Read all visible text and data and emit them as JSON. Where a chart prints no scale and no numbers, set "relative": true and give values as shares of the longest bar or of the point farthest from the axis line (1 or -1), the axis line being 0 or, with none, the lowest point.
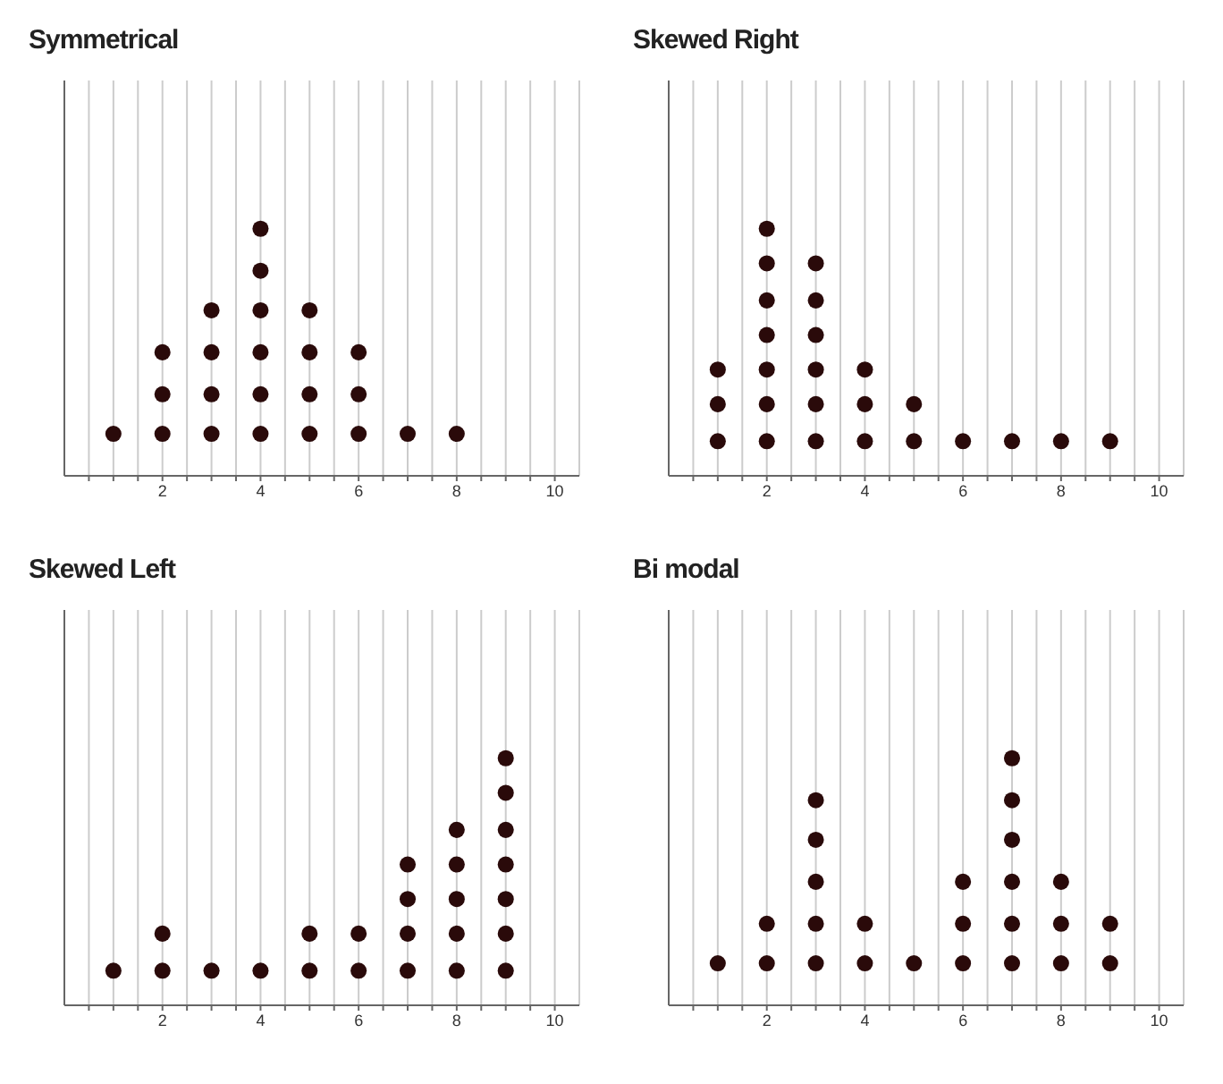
{
  "chart_data": [
    {
      "type": "scatter",
      "title": "Symmetrical",
      "color": "#2a0a0a",
      "marker": "circle",
      "grid": "x",
      "tick_labels": "x",
      "relative": true,
      "x": [
        1,
        2,
        2,
        2,
        3,
        3,
        3,
        3,
        4,
        4,
        4,
        4,
        4,
        4,
        5,
        5,
        5,
        5,
        6,
        6,
        6,
        7,
        8
      ],
      "values": [
        0.17,
        0.17,
        0.33,
        0.5,
        0.17,
        0.33,
        0.5,
        0.67,
        0.17,
        0.33,
        0.5,
        0.67,
        0.83,
        1,
        0.17,
        0.33,
        0.5,
        0.67,
        0.17,
        0.33,
        0.5,
        0.17,
        0.17
      ],
      "xlim": [
        0,
        10.5
      ],
      "xticks": [
        {
          "value": 0.5,
          "label": null
        },
        {
          "value": 1,
          "label": null
        },
        {
          "value": 1.5,
          "label": null
        },
        2,
        {
          "value": 2.5,
          "label": null
        },
        {
          "value": 3,
          "label": null
        },
        {
          "value": 3.5,
          "label": null
        },
        4,
        {
          "value": 4.5,
          "label": null
        },
        {
          "value": 5,
          "label": null
        },
        {
          "value": 5.5,
          "label": null
        },
        6,
        {
          "value": 6.5,
          "label": null
        },
        {
          "value": 7,
          "label": null
        },
        {
          "value": 7.5,
          "label": null
        },
        8,
        {
          "value": 8.5,
          "label": null
        },
        {
          "value": 9,
          "label": null
        },
        {
          "value": 9.5,
          "label": null
        },
        10
      ]
    },
    {
      "type": "scatter",
      "title": "Skewed Right",
      "color": "#2a0a0a",
      "marker": "circle",
      "grid": "x",
      "tick_labels": "x",
      "relative": true,
      "x": [
        1,
        1,
        1,
        2,
        2,
        2,
        2,
        2,
        2,
        2,
        3,
        3,
        3,
        3,
        3,
        3,
        4,
        4,
        4,
        5,
        5,
        6,
        7,
        8,
        9
      ],
      "values": [
        0.14,
        0.29,
        0.43,
        0.14,
        0.29,
        0.43,
        0.57,
        0.71,
        0.86,
        1,
        0.14,
        0.29,
        0.43,
        0.57,
        0.71,
        0.86,
        0.14,
        0.29,
        0.43,
        0.14,
        0.29,
        0.14,
        0.14,
        0.14,
        0.14
      ],
      "xlim": [
        0,
        10.5
      ],
      "xticks": [
        {
          "value": 0.5,
          "label": null
        },
        {
          "value": 1,
          "label": null
        },
        {
          "value": 1.5,
          "label": null
        },
        2,
        {
          "value": 2.5,
          "label": null
        },
        {
          "value": 3,
          "label": null
        },
        {
          "value": 3.5,
          "label": null
        },
        4,
        {
          "value": 4.5,
          "label": null
        },
        {
          "value": 5,
          "label": null
        },
        {
          "value": 5.5,
          "label": null
        },
        6,
        {
          "value": 6.5,
          "label": null
        },
        {
          "value": 7,
          "label": null
        },
        {
          "value": 7.5,
          "label": null
        },
        8,
        {
          "value": 8.5,
          "label": null
        },
        {
          "value": 9,
          "label": null
        },
        {
          "value": 9.5,
          "label": null
        },
        10
      ]
    },
    {
      "type": "scatter",
      "title": "Skewed Left",
      "color": "#2a0a0a",
      "marker": "circle",
      "grid": "x",
      "tick_labels": "x",
      "relative": true,
      "x": [
        1,
        2,
        2,
        3,
        4,
        5,
        5,
        6,
        6,
        7,
        7,
        7,
        7,
        8,
        8,
        8,
        8,
        8,
        9,
        9,
        9,
        9,
        9,
        9,
        9
      ],
      "values": [
        0.14,
        0.14,
        0.29,
        0.14,
        0.14,
        0.14,
        0.29,
        0.14,
        0.29,
        0.14,
        0.29,
        0.43,
        0.57,
        0.14,
        0.29,
        0.43,
        0.57,
        0.71,
        0.14,
        0.29,
        0.43,
        0.57,
        0.71,
        0.86,
        1
      ],
      "xlim": [
        0,
        10.5
      ],
      "xticks": [
        {
          "value": 0.5,
          "label": null
        },
        {
          "value": 1,
          "label": null
        },
        {
          "value": 1.5,
          "label": null
        },
        2,
        {
          "value": 2.5,
          "label": null
        },
        {
          "value": 3,
          "label": null
        },
        {
          "value": 3.5,
          "label": null
        },
        4,
        {
          "value": 4.5,
          "label": null
        },
        {
          "value": 5,
          "label": null
        },
        {
          "value": 5.5,
          "label": null
        },
        6,
        {
          "value": 6.5,
          "label": null
        },
        {
          "value": 7,
          "label": null
        },
        {
          "value": 7.5,
          "label": null
        },
        8,
        {
          "value": 8.5,
          "label": null
        },
        {
          "value": 9,
          "label": null
        },
        {
          "value": 9.5,
          "label": null
        },
        10
      ]
    },
    {
      "type": "scatter",
      "title": "Bi modal",
      "color": "#2a0a0a",
      "marker": "circle",
      "grid": "x",
      "tick_labels": "x",
      "relative": true,
      "x": [
        1,
        2,
        2,
        3,
        3,
        3,
        3,
        3,
        4,
        4,
        5,
        6,
        6,
        6,
        7,
        7,
        7,
        7,
        7,
        7,
        8,
        8,
        8,
        9,
        9
      ],
      "values": [
        0.17,
        0.17,
        0.33,
        0.17,
        0.33,
        0.5,
        0.67,
        0.83,
        0.17,
        0.33,
        0.17,
        0.17,
        0.33,
        0.5,
        0.17,
        0.33,
        0.5,
        0.67,
        0.83,
        1,
        0.17,
        0.33,
        0.5,
        0.17,
        0.33
      ],
      "xlim": [
        0,
        10.5
      ],
      "xticks": [
        {
          "value": 0.5,
          "label": null
        },
        {
          "value": 1,
          "label": null
        },
        {
          "value": 1.5,
          "label": null
        },
        2,
        {
          "value": 2.5,
          "label": null
        },
        {
          "value": 3,
          "label": null
        },
        {
          "value": 3.5,
          "label": null
        },
        4,
        {
          "value": 4.5,
          "label": null
        },
        {
          "value": 5,
          "label": null
        },
        {
          "value": 5.5,
          "label": null
        },
        6,
        {
          "value": 6.5,
          "label": null
        },
        {
          "value": 7,
          "label": null
        },
        {
          "value": 7.5,
          "label": null
        },
        8,
        {
          "value": 8.5,
          "label": null
        },
        {
          "value": 9,
          "label": null
        },
        {
          "value": 9.5,
          "label": null
        },
        10
      ]
    }
  ]
}
